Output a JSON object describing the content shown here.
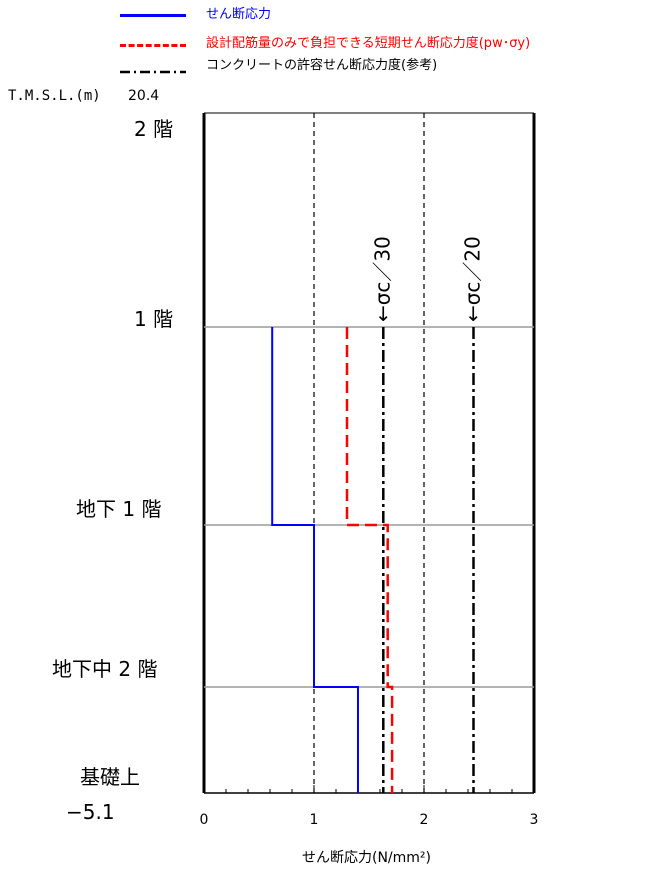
{
  "legend": [
    {
      "label": "せん断応力",
      "color": "#0000ff",
      "style": "solid"
    },
    {
      "label": "設計配筋量のみで負担できる短期せん断応力度(pw･σy)",
      "color": "#ff0000",
      "style": "dashed"
    },
    {
      "label": "コンクリートの許容せん断応力度(参考)",
      "color": "#000000",
      "style": "dashdot"
    }
  ],
  "tmsl_label": "T.M.S.L.(m)",
  "top_level": "20.4",
  "bottom_level": "−5.1",
  "floors": [
    "2 階",
    "1 階",
    "地下 1 階",
    "地下中 2 階",
    "基礎上"
  ],
  "chart_data": {
    "type": "line",
    "xlabel": "せん断応力(N/mm²)",
    "xlim": [
      0,
      3
    ],
    "x_ticks": [
      "0",
      "1",
      "2",
      "3"
    ],
    "reference_labels": [
      "σc／30",
      "σc／20"
    ],
    "series": [
      {
        "name": "せん断応力",
        "color": "#0000ff",
        "segments": [
          {
            "floor": "1階-地下1階",
            "value": 0.62
          },
          {
            "floor": "地下1階-地下中2階",
            "value": 1.0
          },
          {
            "floor": "地下中2階-基礎上",
            "value": 1.4
          }
        ]
      },
      {
        "name": "設計配筋量のみで負担できる短期せん断応力度(pw･σy)",
        "color": "#ff0000",
        "segments": [
          {
            "floor": "1階-地下1階",
            "value": 1.3
          },
          {
            "floor": "地下1階-地下中2階",
            "value": 1.67
          },
          {
            "floor": "地下中2階-基礎上",
            "value": 1.71
          }
        ]
      },
      {
        "name": "σc／30",
        "color": "#000000",
        "value": 1.63,
        "from_floor": "1階"
      },
      {
        "name": "σc／20",
        "color": "#000000",
        "value": 2.45,
        "from_floor": "1階"
      }
    ]
  }
}
